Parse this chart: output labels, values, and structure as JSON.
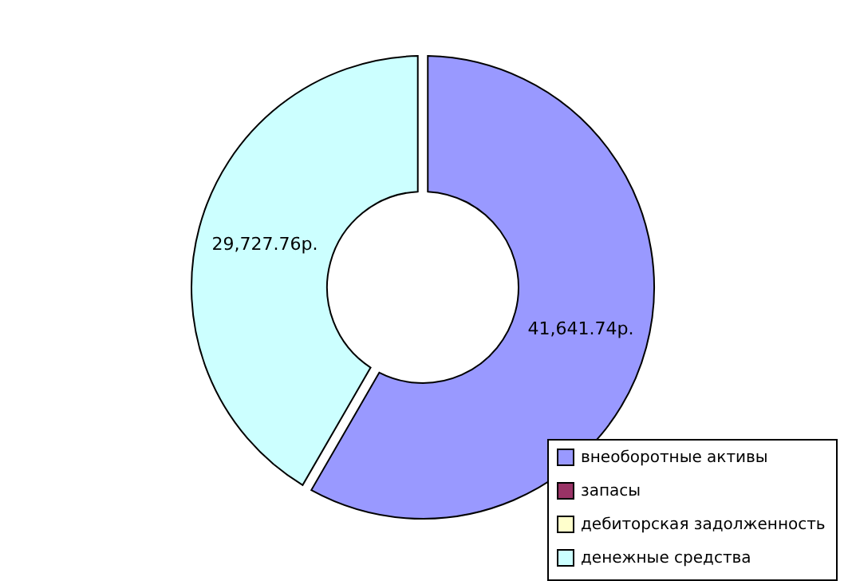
{
  "chart_data": {
    "type": "donut",
    "categories": [
      "внеоборотные активы",
      "запасы",
      "дебиторская задолженность",
      "денежные средства"
    ],
    "values": [
      41641.74,
      0,
      0,
      29727.76
    ],
    "colors": [
      "#9999ff",
      "#993366",
      "#ffffcc",
      "#ccffff"
    ],
    "value_labels": [
      "41,641.74р.",
      null,
      null,
      "29,727.76р."
    ],
    "legend": "bottom right"
  }
}
